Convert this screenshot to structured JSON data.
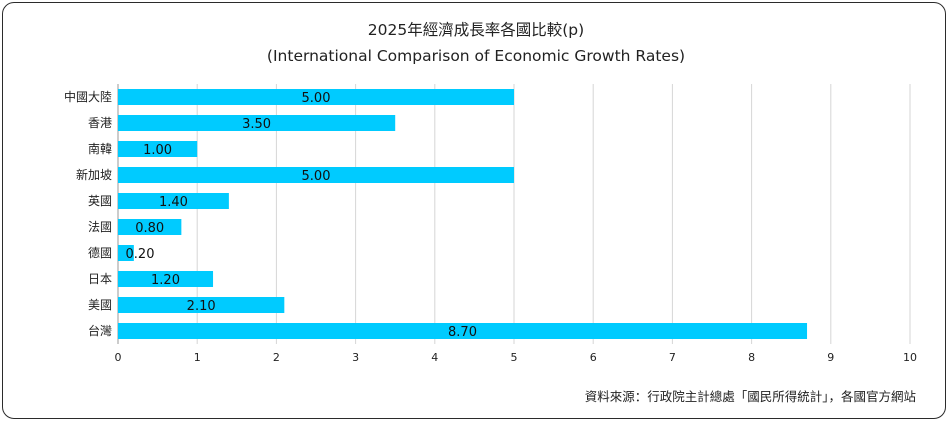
{
  "chart_data": {
    "type": "bar",
    "orientation": "horizontal",
    "title": "2025年經濟成長率各國比較(p)",
    "subtitle": "(International Comparison of Economic Growth Rates)",
    "categories": [
      "中國大陸",
      "香港",
      "南韓",
      "新加坡",
      "英國",
      "法國",
      "德國",
      "日本",
      "美國",
      "台灣"
    ],
    "values": [
      5.0,
      3.5,
      1.0,
      5.0,
      1.4,
      0.8,
      0.2,
      1.2,
      2.1,
      8.7
    ],
    "data_labels": [
      "5.00",
      "3.50",
      "1.00",
      "5.00",
      "1.40",
      "0.80",
      "0.20",
      "1.20",
      "2.10",
      "8.70"
    ],
    "xlim": [
      0,
      10
    ],
    "xticks": [
      "0",
      "1",
      "2",
      "3",
      "4",
      "5",
      "6",
      "7",
      "8",
      "9",
      "10"
    ],
    "grid": true,
    "bar_color": "#00cbff",
    "source_note": "資料來源：行政院主計總處「國民所得統計」，各國官方網站"
  }
}
